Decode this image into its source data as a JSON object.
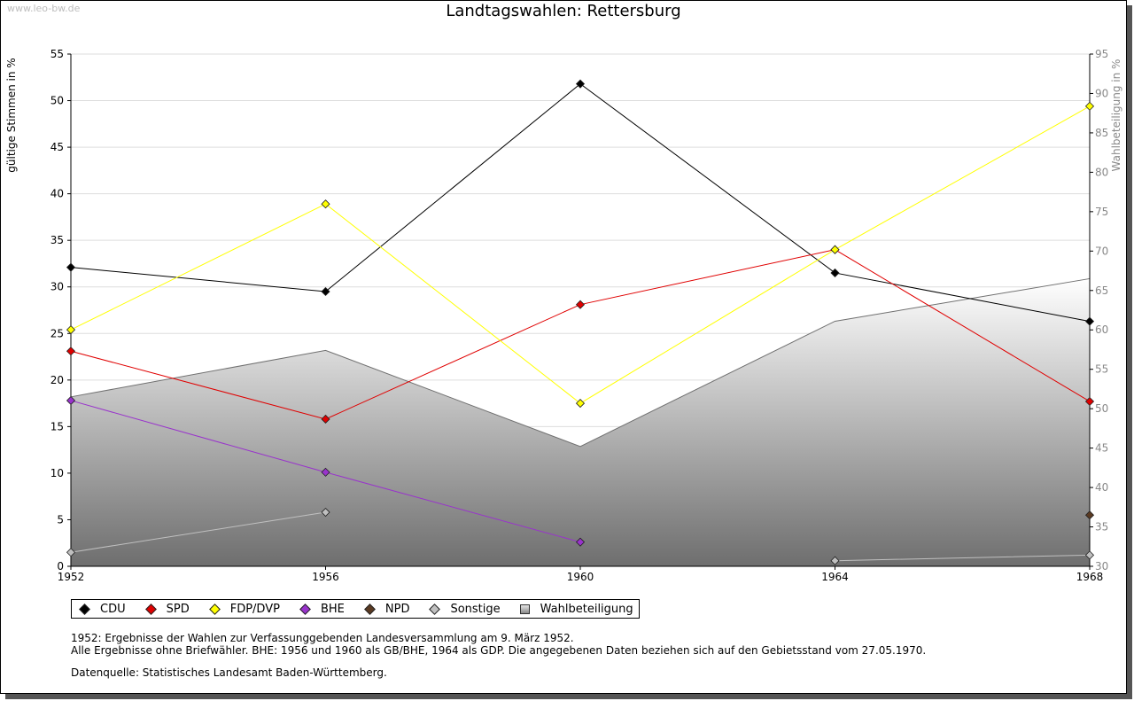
{
  "watermark": "www.leo-bw.de",
  "title": "Landtagswahlen: Rettersburg",
  "chart_data": {
    "type": "line",
    "title": "Landtagswahlen: Rettersburg",
    "x": [
      1952,
      1956,
      1960,
      1964,
      1968
    ],
    "xlim": [
      1952,
      1968
    ],
    "ylabel": "gültige Stimmen in %",
    "y2label": "Wahlbeteiligung in %",
    "ylim": [
      0,
      55
    ],
    "y2lim": [
      30,
      95
    ],
    "yticks": [
      0,
      5,
      10,
      15,
      20,
      25,
      30,
      35,
      40,
      45,
      50,
      55
    ],
    "y2ticks": [
      30,
      35,
      40,
      45,
      50,
      55,
      60,
      65,
      70,
      75,
      80,
      85,
      90,
      95
    ],
    "grid": true,
    "legend_position": "bottom",
    "series": [
      {
        "name": "CDU",
        "color": "#000000",
        "values": [
          32.1,
          29.5,
          51.8,
          31.5,
          26.3
        ]
      },
      {
        "name": "SPD",
        "color": "#e00000",
        "values": [
          23.1,
          15.8,
          28.1,
          34.0,
          17.7
        ]
      },
      {
        "name": "FDP/DVP",
        "color": "#ffff00",
        "values": [
          25.4,
          38.9,
          17.5,
          34.0,
          49.4
        ]
      },
      {
        "name": "BHE",
        "color": "#9933cc",
        "values": [
          17.8,
          10.1,
          2.6,
          null,
          null
        ]
      },
      {
        "name": "NPD",
        "color": "#5a3a22",
        "values": [
          null,
          null,
          null,
          null,
          5.5
        ]
      },
      {
        "name": "Sonstige",
        "color": "#c0c0c0",
        "values": [
          1.5,
          5.8,
          null,
          0.6,
          1.2
        ]
      }
    ],
    "area_series": {
      "name": "Wahlbeteiligung",
      "axis": "right",
      "values": [
        51.5,
        57.4,
        45.2,
        61.1,
        66.5
      ]
    }
  },
  "legend": [
    {
      "label": "CDU",
      "color": "#000000",
      "marker": "diamond"
    },
    {
      "label": "SPD",
      "color": "#e00000",
      "marker": "diamond"
    },
    {
      "label": "FDP/DVP",
      "color": "#ffff00",
      "marker": "diamond"
    },
    {
      "label": "BHE",
      "color": "#9933cc",
      "marker": "diamond"
    },
    {
      "label": "NPD",
      "color": "#5a3a22",
      "marker": "diamond"
    },
    {
      "label": "Sonstige",
      "color": "#c0c0c0",
      "marker": "diamond"
    },
    {
      "label": "Wahlbeteiligung",
      "color": "#aaaaaa",
      "marker": "square"
    }
  ],
  "notes": [
    "1952: Ergebnisse der Wahlen zur Verfassunggebenden Landesversammlung am 9. März 1952.",
    "Alle Ergebnisse ohne Briefwähler. BHE: 1956 und 1960 als GB/BHE, 1964 als GDP. Die angegebenen Daten beziehen sich auf den Gebietsstand vom 27.05.1970."
  ],
  "source": "Datenquelle: Statistisches Landesamt Baden-Württemberg."
}
